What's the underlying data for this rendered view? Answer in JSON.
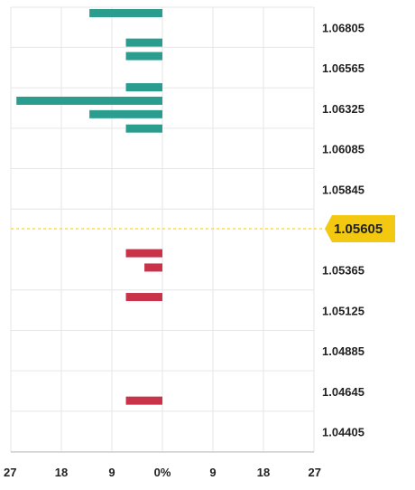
{
  "chart_data": {
    "type": "bar",
    "orientation": "horizontal",
    "x_ticks": [
      "27",
      "18",
      "9",
      "0%",
      "9",
      "18",
      "27"
    ],
    "x_range": [
      -27,
      27
    ],
    "y_ticks": [
      "1.06805",
      "1.06565",
      "1.06325",
      "1.06085",
      "1.05845",
      "1.05365",
      "1.05125",
      "1.04885",
      "1.04645",
      "1.04405"
    ],
    "y_range": [
      1.04285,
      1.06925
    ],
    "current_price": "1.05605",
    "grid": true,
    "series": [
      {
        "side": "ask",
        "color": "#2a9d8f",
        "bars": [
          {
            "price": 1.0689,
            "value": 13
          },
          {
            "price": 1.06715,
            "value": 6.5
          },
          {
            "price": 1.06635,
            "value": 6.5
          },
          {
            "price": 1.0645,
            "value": 6.5
          },
          {
            "price": 1.0637,
            "value": 26
          },
          {
            "price": 1.0629,
            "value": 13
          },
          {
            "price": 1.06205,
            "value": 6.5
          }
        ]
      },
      {
        "side": "bid",
        "color": "#c8334a",
        "bars": [
          {
            "price": 1.05465,
            "value": 6.5
          },
          {
            "price": 1.0538,
            "value": 3.2
          },
          {
            "price": 1.05205,
            "value": 6.5
          },
          {
            "price": 1.0459,
            "value": 6.5
          }
        ]
      }
    ],
    "colors": {
      "grid": "#e6e6e6",
      "axis": "#bbbbbb",
      "current_line": "#f2c811",
      "current_tag": "#f2c811"
    }
  }
}
